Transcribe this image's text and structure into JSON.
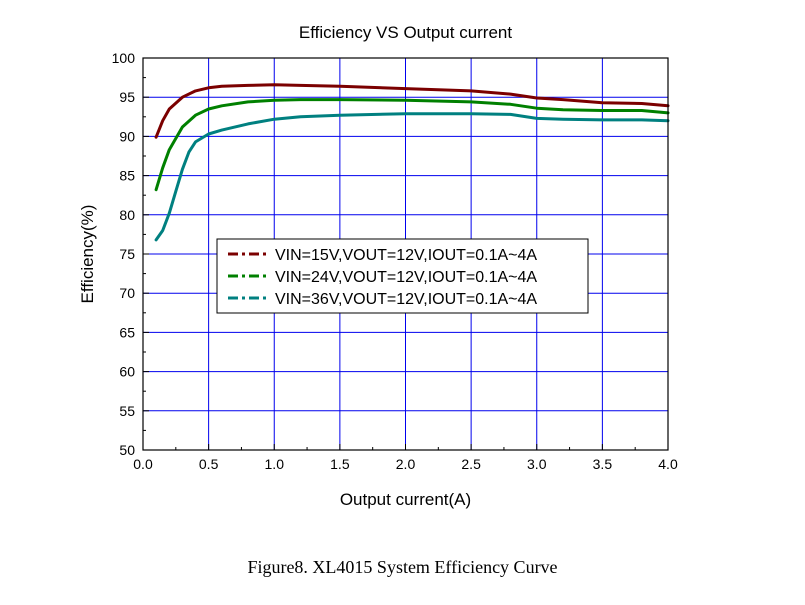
{
  "figure": {
    "caption": "Figure8. XL4015 System Efficiency Curve"
  },
  "chart_data": {
    "type": "line",
    "title": "Efficiency VS Output current",
    "xlabel": "Output current(A)",
    "ylabel": "Efficiency(%)",
    "xlim": [
      0.0,
      4.0
    ],
    "ylim": [
      50,
      100
    ],
    "x_ticks": [
      "0.0",
      "0.5",
      "1.0",
      "1.5",
      "2.0",
      "2.5",
      "3.0",
      "3.5",
      "4.0"
    ],
    "y_ticks": [
      "50",
      "55",
      "60",
      "65",
      "70",
      "75",
      "80",
      "85",
      "90",
      "95",
      "100"
    ],
    "grid": true,
    "legend_position": "center",
    "series": [
      {
        "name": "VIN=15V,VOUT=12V,IOUT=0.1A~4A",
        "color": "#7b0000",
        "x": [
          0.1,
          0.15,
          0.2,
          0.3,
          0.4,
          0.5,
          0.6,
          0.8,
          1.0,
          1.2,
          1.5,
          2.0,
          2.5,
          2.8,
          3.0,
          3.2,
          3.5,
          3.8,
          4.0
        ],
        "y": [
          89.9,
          92.0,
          93.5,
          95.0,
          95.8,
          96.2,
          96.4,
          96.5,
          96.6,
          96.5,
          96.4,
          96.1,
          95.8,
          95.4,
          94.9,
          94.7,
          94.3,
          94.2,
          93.9
        ]
      },
      {
        "name": "VIN=24V,VOUT=12V,IOUT=0.1A~4A",
        "color": "#008000",
        "x": [
          0.1,
          0.15,
          0.2,
          0.3,
          0.4,
          0.5,
          0.6,
          0.8,
          1.0,
          1.2,
          1.5,
          2.0,
          2.5,
          2.8,
          3.0,
          3.2,
          3.5,
          3.8,
          4.0
        ],
        "y": [
          83.2,
          86.0,
          88.3,
          91.2,
          92.7,
          93.5,
          93.9,
          94.4,
          94.6,
          94.7,
          94.7,
          94.6,
          94.4,
          94.1,
          93.6,
          93.4,
          93.3,
          93.3,
          93.0
        ]
      },
      {
        "name": "VIN=36V,VOUT=12V,IOUT=0.1A~4A",
        "color": "#008080",
        "x": [
          0.1,
          0.15,
          0.2,
          0.25,
          0.3,
          0.35,
          0.4,
          0.5,
          0.6,
          0.8,
          1.0,
          1.2,
          1.5,
          2.0,
          2.5,
          2.8,
          3.0,
          3.2,
          3.5,
          3.8,
          4.0
        ],
        "y": [
          76.8,
          78.0,
          80.2,
          83.0,
          85.8,
          88.0,
          89.3,
          90.3,
          90.8,
          91.6,
          92.2,
          92.5,
          92.7,
          92.9,
          92.9,
          92.8,
          92.3,
          92.2,
          92.1,
          92.1,
          92.0
        ]
      }
    ]
  }
}
